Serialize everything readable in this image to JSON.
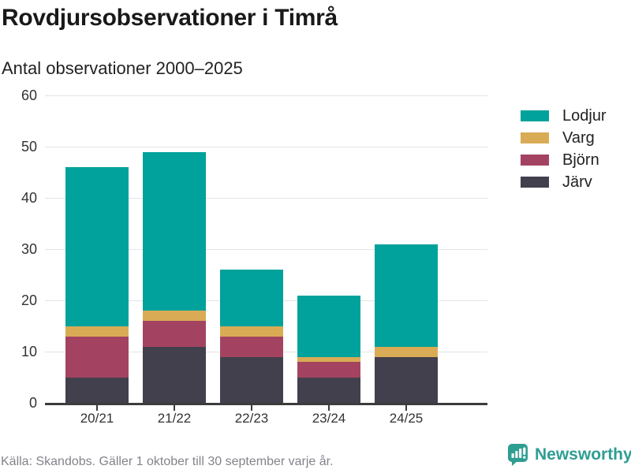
{
  "header": {
    "title": "Rovdjursobservationer i Timrå",
    "subtitle": "Antal observationer 2000–2025"
  },
  "chart_data": {
    "type": "bar",
    "stacked": true,
    "title": "Rovdjursobservationer i Timrå",
    "subtitle": "Antal observationer 2000–2025",
    "categories": [
      "20/21",
      "21/22",
      "22/23",
      "23/24",
      "24/25"
    ],
    "series": [
      {
        "name": "Lodjur",
        "color": "#00A29B",
        "values": [
          31,
          31,
          11,
          12,
          20
        ]
      },
      {
        "name": "Varg",
        "color": "#D9AB55",
        "values": [
          2,
          2,
          2,
          1,
          2
        ]
      },
      {
        "name": "Björn",
        "color": "#A44361",
        "values": [
          8,
          5,
          4,
          3,
          0
        ]
      },
      {
        "name": "Järv",
        "color": "#42404D",
        "values": [
          5,
          11,
          9,
          5,
          9
        ]
      }
    ],
    "ylim": [
      0,
      60
    ],
    "yticks": [
      0,
      10,
      20,
      30,
      40,
      50,
      60
    ],
    "grid": true,
    "legend_position": "right",
    "axis_color": "#3C3C3C",
    "grid_color": "#E4E4E4"
  },
  "footer": {
    "source": "Källa: Skandobs. Gäller 1 oktober till 30 september varje år.",
    "brand": "Newsworthy",
    "brand_color": "#2F9D92"
  }
}
